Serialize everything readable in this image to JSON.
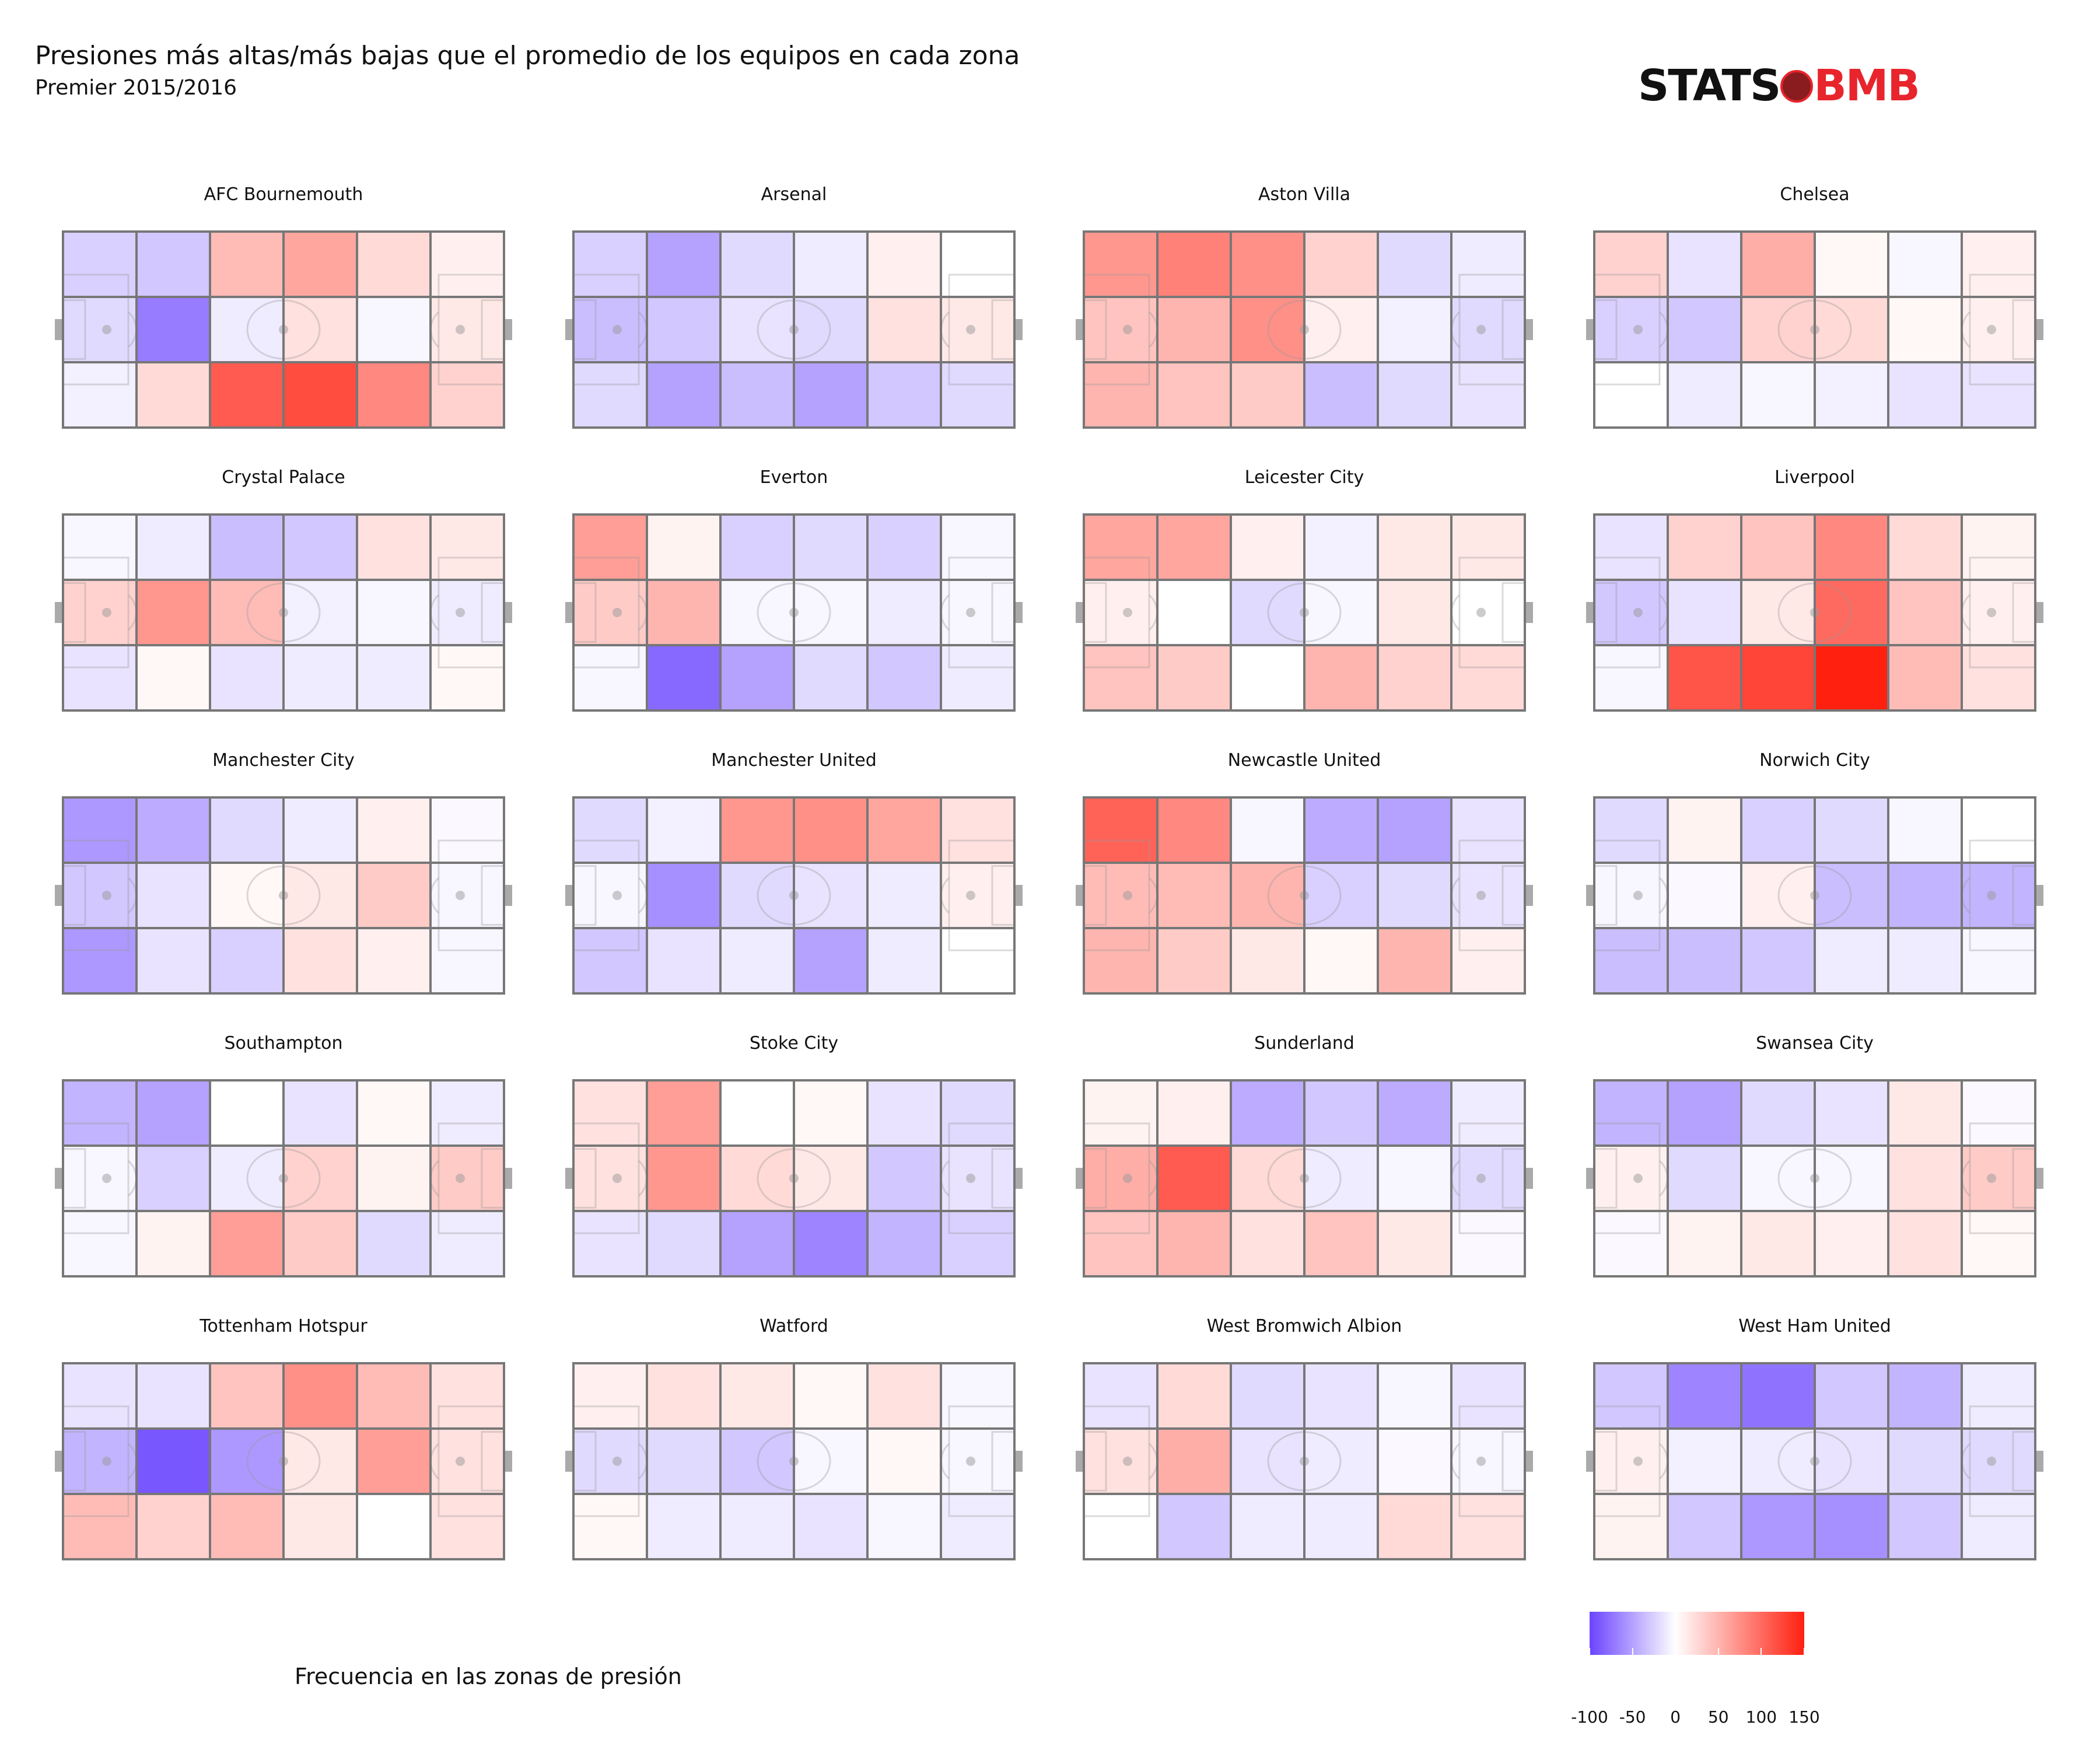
{
  "title": "Presiones más altas/más bajas que el promedio de los equipos en cada zona",
  "subtitle": "Premier 2015/2016",
  "logo": {
    "text_left": "STATS",
    "text_right": "BMB",
    "icon": "bomb-ball-icon"
  },
  "legend": {
    "title": "Frecuencia en las zonas de presión",
    "ticks": [
      "-100",
      "-50",
      "0",
      "50",
      "100",
      "150"
    ],
    "colors": {
      "low": "#6a44ff",
      "mid": "#ffffff",
      "high": "#ff2010"
    }
  },
  "chart_data": {
    "type": "heatmap",
    "grid": {
      "rows": 3,
      "cols": 6
    },
    "value_range": [
      -100,
      150
    ],
    "teams": [
      {
        "name": "AFC Bournemouth",
        "values": [
          [
            -25,
            -30,
            45,
            60,
            25,
            10
          ],
          [
            -20,
            -70,
            -10,
            20,
            -5,
            15
          ],
          [
            -8,
            25,
            110,
            120,
            80,
            30
          ]
        ]
      },
      {
        "name": "Arsenal",
        "values": [
          [
            -25,
            -50,
            -20,
            -10,
            10,
            0
          ],
          [
            -35,
            -30,
            -15,
            -20,
            20,
            15
          ],
          [
            -20,
            -50,
            -35,
            -50,
            -30,
            -20
          ]
        ]
      },
      {
        "name": "Aston Villa",
        "values": [
          [
            70,
            85,
            75,
            30,
            -20,
            -10
          ],
          [
            40,
            50,
            75,
            10,
            -8,
            -20
          ],
          [
            50,
            40,
            35,
            -35,
            -20,
            -15
          ]
        ]
      },
      {
        "name": "Chelsea",
        "values": [
          [
            30,
            -15,
            55,
            5,
            -5,
            10
          ],
          [
            -25,
            -30,
            30,
            25,
            5,
            10
          ],
          [
            0,
            -10,
            -5,
            -8,
            -15,
            -15
          ]
        ]
      },
      {
        "name": "Crystal Palace",
        "values": [
          [
            -5,
            -10,
            -35,
            -30,
            20,
            15
          ],
          [
            30,
            70,
            45,
            -8,
            -5,
            -10
          ],
          [
            -15,
            5,
            -15,
            -10,
            -10,
            5
          ]
        ]
      },
      {
        "name": "Everton",
        "values": [
          [
            65,
            8,
            -25,
            -20,
            -25,
            -5
          ],
          [
            35,
            50,
            -5,
            -5,
            -10,
            -5
          ],
          [
            -5,
            -80,
            -50,
            -20,
            -30,
            -10
          ]
        ]
      },
      {
        "name": "Leicester City",
        "values": [
          [
            60,
            60,
            10,
            -8,
            15,
            15
          ],
          [
            10,
            0,
            -20,
            -5,
            15,
            0
          ],
          [
            40,
            35,
            0,
            50,
            30,
            25
          ]
        ]
      },
      {
        "name": "Liverpool",
        "values": [
          [
            -15,
            30,
            40,
            80,
            25,
            8
          ],
          [
            -30,
            -15,
            15,
            100,
            40,
            10
          ],
          [
            -5,
            115,
            125,
            150,
            45,
            20
          ]
        ]
      },
      {
        "name": "Manchester City",
        "values": [
          [
            -55,
            -45,
            -20,
            -10,
            10,
            -3
          ],
          [
            -30,
            -15,
            5,
            15,
            35,
            -5
          ],
          [
            -55,
            -15,
            -25,
            20,
            10,
            -5
          ]
        ]
      },
      {
        "name": "Manchester United",
        "values": [
          [
            -20,
            -8,
            70,
            75,
            60,
            20
          ],
          [
            -5,
            -60,
            -20,
            -15,
            -10,
            10
          ],
          [
            -30,
            -15,
            -10,
            -50,
            -10,
            0
          ]
        ]
      },
      {
        "name": "Newcastle United",
        "values": [
          [
            105,
            80,
            -5,
            -45,
            -50,
            -15
          ],
          [
            45,
            45,
            50,
            -25,
            -20,
            -15
          ],
          [
            50,
            35,
            15,
            5,
            50,
            10
          ]
        ]
      },
      {
        "name": "Norwich City",
        "values": [
          [
            -20,
            8,
            -25,
            -20,
            -5,
            0
          ],
          [
            -5,
            -3,
            10,
            -35,
            -40,
            -40
          ],
          [
            -35,
            -35,
            -30,
            -10,
            -10,
            -5
          ]
        ]
      },
      {
        "name": "Southampton",
        "values": [
          [
            -40,
            -50,
            0,
            -15,
            5,
            -10
          ],
          [
            -5,
            -25,
            -10,
            30,
            8,
            35
          ],
          [
            -5,
            8,
            65,
            35,
            -20,
            -10
          ]
        ]
      },
      {
        "name": "Stoke City",
        "values": [
          [
            20,
            65,
            0,
            5,
            -15,
            -20
          ],
          [
            20,
            70,
            25,
            15,
            -30,
            -15
          ],
          [
            -15,
            -20,
            -50,
            -65,
            -40,
            -25
          ]
        ]
      },
      {
        "name": "Sunderland",
        "values": [
          [
            8,
            10,
            -45,
            -30,
            -45,
            -10
          ],
          [
            55,
            110,
            25,
            -10,
            -5,
            -20
          ],
          [
            40,
            50,
            20,
            40,
            15,
            -3
          ]
        ]
      },
      {
        "name": "Swansea City",
        "values": [
          [
            -40,
            -50,
            -20,
            -15,
            15,
            -3
          ],
          [
            10,
            -20,
            -5,
            -5,
            20,
            35
          ],
          [
            -3,
            8,
            15,
            10,
            20,
            5
          ]
        ]
      },
      {
        "name": "Tottenham Hotspur",
        "values": [
          [
            -15,
            -15,
            40,
            75,
            45,
            20
          ],
          [
            -40,
            -90,
            -55,
            15,
            65,
            20
          ],
          [
            45,
            30,
            45,
            15,
            0,
            20
          ]
        ]
      },
      {
        "name": "Watford",
        "values": [
          [
            10,
            20,
            15,
            5,
            20,
            -5
          ],
          [
            -20,
            -20,
            -30,
            -5,
            5,
            -5
          ],
          [
            5,
            -10,
            -10,
            -15,
            -5,
            -10
          ]
        ]
      },
      {
        "name": "West Bromwich Albion",
        "values": [
          [
            -15,
            25,
            -20,
            -15,
            -5,
            -15
          ],
          [
            20,
            55,
            -15,
            -10,
            -3,
            -5
          ],
          [
            0,
            -30,
            -10,
            -10,
            25,
            20
          ]
        ]
      },
      {
        "name": "West Ham United",
        "values": [
          [
            -30,
            -65,
            -75,
            -30,
            -40,
            -10
          ],
          [
            10,
            -8,
            -10,
            -15,
            -20,
            -20
          ],
          [
            8,
            -30,
            -55,
            -60,
            -30,
            -10
          ]
        ]
      }
    ]
  }
}
